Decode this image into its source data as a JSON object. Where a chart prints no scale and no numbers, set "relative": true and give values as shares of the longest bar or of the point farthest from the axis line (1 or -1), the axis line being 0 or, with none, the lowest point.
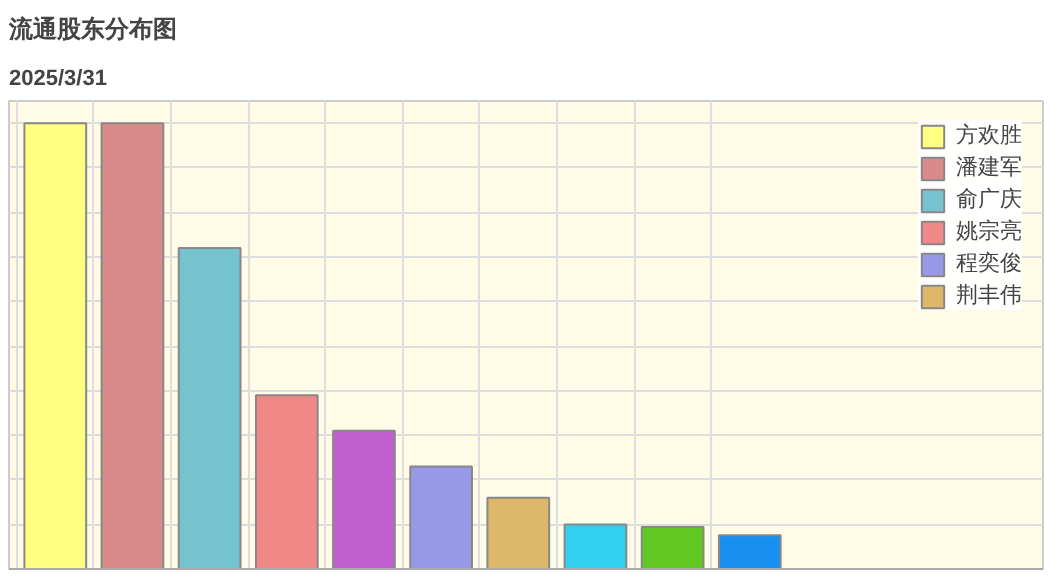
{
  "chart_data": {
    "type": "bar",
    "title": "流通股东分布图",
    "subtitle": "2025/3/31",
    "relative": true,
    "stacked": true,
    "grid": true,
    "legend": "right",
    "categories": [
      null,
      null,
      null,
      null,
      null,
      null,
      null,
      null,
      null,
      null
    ],
    "series": [
      {
        "name": "方欢胜",
        "color": "#ffff80",
        "values": [
          1,
          null,
          null,
          null,
          null,
          null,
          null,
          null,
          null,
          null
        ]
      },
      {
        "name": "潘建军",
        "color": "#d98a8a",
        "values": [
          null,
          1,
          null,
          null,
          null,
          null,
          null,
          null,
          null,
          null
        ]
      },
      {
        "name": "俞广庆",
        "color": "#74c3cf",
        "values": [
          null,
          null,
          0.72,
          null,
          null,
          null,
          null,
          null,
          null,
          null
        ]
      },
      {
        "name": "姚宗亮",
        "color": "#f08888",
        "values": [
          null,
          null,
          null,
          0.39,
          null,
          null,
          null,
          null,
          null,
          null
        ]
      },
      {
        "color": "#c060d0",
        "values": [
          null,
          null,
          null,
          null,
          0.31,
          null,
          null,
          null,
          null,
          null
        ]
      },
      {
        "name": "程奕俊",
        "color": "#9898e8",
        "values": [
          null,
          null,
          null,
          null,
          null,
          0.23,
          null,
          null,
          null,
          null
        ]
      },
      {
        "name": "荆丰伟",
        "color": "#deb86a",
        "values": [
          null,
          null,
          null,
          null,
          null,
          null,
          0.16,
          null,
          null,
          null
        ]
      },
      {
        "color": "#30d0f0",
        "values": [
          null,
          null,
          null,
          null,
          null,
          null,
          null,
          0.1,
          null,
          null
        ]
      },
      {
        "color": "#60c820",
        "values": [
          null,
          null,
          null,
          null,
          null,
          null,
          null,
          null,
          0.094,
          null
        ]
      },
      {
        "color": "#1890f0",
        "values": [
          null,
          null,
          null,
          null,
          null,
          null,
          null,
          null,
          null,
          0.076
        ]
      }
    ]
  }
}
